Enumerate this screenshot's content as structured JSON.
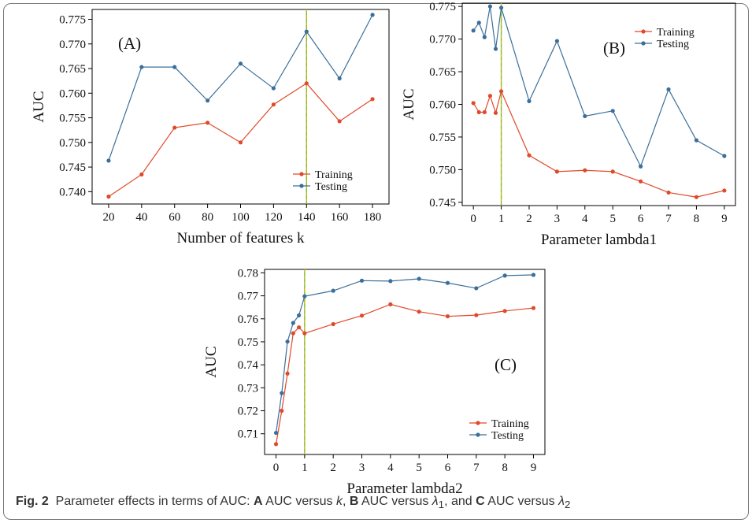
{
  "caption": {
    "label": "Fig. 2",
    "text_pre": "Parameter effects in terms of AUC:",
    "a_letter": "A",
    "a_text": "AUC versus",
    "a_var": "k",
    "b_letter": "B",
    "b_text": "AUC versus",
    "b_var": "λ",
    "b_sub": "1",
    "and_text": ", and",
    "c_letter": "C",
    "c_text": "AUC versus",
    "c_var": "λ",
    "c_sub": "2"
  },
  "colors": {
    "training": "#e0492a",
    "testing": "#3a6f9a",
    "vline": "#6fbf2a",
    "vline_dash": "#f0b000"
  },
  "chart_data": [
    {
      "type": "line",
      "panel_label": "(A)",
      "xlabel": "Number of features k",
      "ylabel": "AUC",
      "x": [
        20,
        40,
        60,
        80,
        100,
        120,
        140,
        160,
        180
      ],
      "xticks": [
        20,
        40,
        60,
        80,
        100,
        120,
        140,
        160,
        180
      ],
      "xlim": [
        10,
        190
      ],
      "ylim": [
        0.7375,
        0.777
      ],
      "yticks": [
        0.74,
        0.745,
        0.75,
        0.755,
        0.76,
        0.765,
        0.77,
        0.775
      ],
      "ytick_labels": [
        "0.740",
        "0.745",
        "0.750",
        "0.755",
        "0.760",
        "0.765",
        "0.770",
        "0.775"
      ],
      "vline": 140,
      "legend": "lower-right",
      "series": [
        {
          "name": "Training",
          "values": [
            0.739,
            0.7435,
            0.753,
            0.754,
            0.75,
            0.7577,
            0.762,
            0.7543,
            0.7588
          ]
        },
        {
          "name": "Testing",
          "values": [
            0.7463,
            0.7653,
            0.7653,
            0.7585,
            0.766,
            0.761,
            0.7725,
            0.763,
            0.7759
          ]
        }
      ]
    },
    {
      "type": "line",
      "panel_label": "(B)",
      "xlabel": "Parameter lambda1",
      "ylabel": "AUC",
      "x": [
        0,
        0.2,
        0.4,
        0.6,
        0.8,
        1,
        2,
        3,
        4,
        5,
        6,
        7,
        8,
        9
      ],
      "xticks": [
        0,
        1,
        2,
        3,
        4,
        5,
        6,
        7,
        8,
        9
      ],
      "xlim": [
        -0.4,
        9.4
      ],
      "ylim": [
        0.7445,
        0.7755
      ],
      "yticks": [
        0.745,
        0.75,
        0.755,
        0.76,
        0.765,
        0.77,
        0.775
      ],
      "ytick_labels": [
        "0.745",
        "0.750",
        "0.755",
        "0.760",
        "0.765",
        "0.770",
        "0.775"
      ],
      "vline": 1,
      "legend": "top-right",
      "series": [
        {
          "name": "Training",
          "values": [
            0.7602,
            0.7588,
            0.7588,
            0.7613,
            0.7587,
            0.762,
            0.7522,
            0.7497,
            0.7499,
            0.7497,
            0.7482,
            0.7465,
            0.7458,
            0.7468
          ]
        },
        {
          "name": "Testing",
          "values": [
            0.7713,
            0.7725,
            0.7703,
            0.775,
            0.7685,
            0.7748,
            0.7605,
            0.7697,
            0.7582,
            0.759,
            0.7505,
            0.7623,
            0.7545,
            0.7521
          ]
        }
      ]
    },
    {
      "type": "line",
      "panel_label": "(C)",
      "xlabel": "Parameter lambda2",
      "ylabel": "AUC",
      "x": [
        0,
        0.2,
        0.4,
        0.6,
        0.8,
        1,
        2,
        3,
        4,
        5,
        6,
        7,
        8,
        9
      ],
      "xticks": [
        0,
        1,
        2,
        3,
        4,
        5,
        6,
        7,
        8,
        9
      ],
      "xlim": [
        -0.4,
        9.4
      ],
      "ylim": [
        0.701,
        0.7815
      ],
      "yticks": [
        0.71,
        0.72,
        0.73,
        0.74,
        0.75,
        0.76,
        0.77,
        0.78
      ],
      "ytick_labels": [
        "0.71",
        "0.72",
        "0.73",
        "0.74",
        "0.75",
        "0.76",
        "0.77",
        "0.78"
      ],
      "vline": 1,
      "legend": "lower-right",
      "series": [
        {
          "name": "Training",
          "values": [
            0.7055,
            0.72,
            0.7362,
            0.7537,
            0.7563,
            0.7537,
            0.7577,
            0.7614,
            0.7663,
            0.7631,
            0.7611,
            0.7616,
            0.7634,
            0.7647
          ]
        },
        {
          "name": "Testing",
          "values": [
            0.7104,
            0.7277,
            0.7501,
            0.7582,
            0.7615,
            0.7698,
            0.7722,
            0.7766,
            0.7764,
            0.7774,
            0.7756,
            0.7733,
            0.7788,
            0.7791
          ]
        }
      ]
    }
  ]
}
